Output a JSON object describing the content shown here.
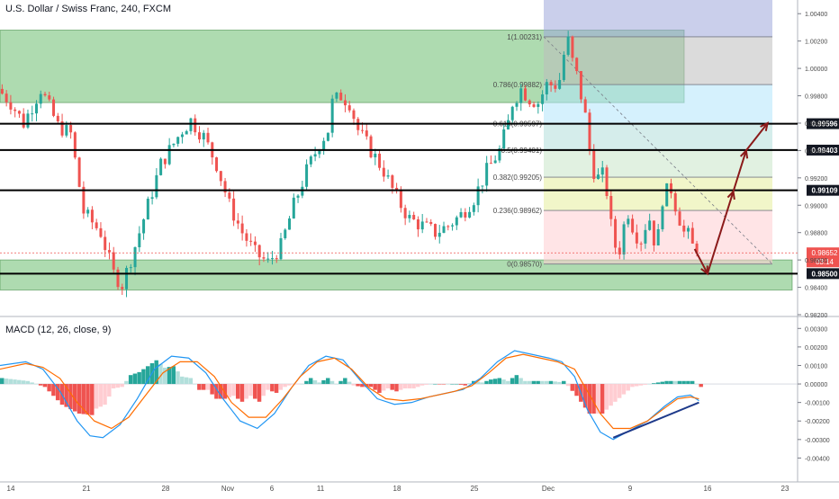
{
  "header": {
    "symbol_title": "U.S. Dollar / Swiss Franc, 240, FXCM"
  },
  "macd_title": "MACD (12, 26, close, 9)",
  "colors": {
    "up": "#26a69a",
    "down": "#ef5350",
    "zone_green": "#4caf50",
    "level_line": "#000000",
    "arrow": "#8b1a1a"
  },
  "chart_data": [
    {
      "type": "candlestick",
      "ylim": [
        0.982,
        1.005
      ],
      "y_ticks": [
        "1.00400",
        "1.00200",
        "1.00000",
        "0.99800",
        "0.99600",
        "0.99400",
        "0.99200",
        "0.99000",
        "0.98800",
        "0.98600",
        "0.98400",
        "0.98200"
      ],
      "x_ticks": [
        "14",
        "21",
        "28",
        "Nov",
        "6",
        "11",
        "18",
        "25",
        "Dec",
        "9",
        "16",
        "23"
      ],
      "price_path": [
        [
          0,
          0.9985
        ],
        [
          3,
          0.9975
        ],
        [
          6,
          0.996
        ],
        [
          10,
          0.9985
        ],
        [
          14,
          0.9958
        ],
        [
          17,
          0.9952
        ],
        [
          20,
          0.9895
        ],
        [
          24,
          0.988
        ],
        [
          27,
          0.985
        ],
        [
          29,
          0.9842
        ],
        [
          32,
          0.987
        ],
        [
          35,
          0.99
        ],
        [
          38,
          0.993
        ],
        [
          41,
          0.9945
        ],
        [
          43,
          0.9955
        ],
        [
          45,
          0.9962
        ],
        [
          48,
          0.995
        ],
        [
          51,
          0.993
        ],
        [
          54,
          0.99
        ],
        [
          57,
          0.988
        ],
        [
          60,
          0.9865
        ],
        [
          63,
          0.9858
        ],
        [
          66,
          0.987
        ],
        [
          69,
          0.99
        ],
        [
          72,
          0.9925
        ],
        [
          75,
          0.9945
        ],
        [
          77,
          0.9955
        ],
        [
          78,
          0.9975
        ],
        [
          80,
          0.998
        ],
        [
          82,
          0.9975
        ],
        [
          84,
          0.9955
        ],
        [
          87,
          0.994
        ],
        [
          90,
          0.9925
        ],
        [
          93,
          0.9905
        ],
        [
          96,
          0.989
        ],
        [
          99,
          0.9885
        ],
        [
          102,
          0.988
        ],
        [
          105,
          0.9885
        ],
        [
          108,
          0.9893
        ],
        [
          111,
          0.9905
        ],
        [
          114,
          0.9925
        ],
        [
          117,
          0.994
        ],
        [
          119,
          0.996
        ],
        [
          120,
          0.9975
        ],
        [
          122,
          0.9985
        ],
        [
          124,
          0.9978
        ],
        [
          126,
          0.9975
        ],
        [
          128,
          0.9988
        ],
        [
          130,
          0.9988
        ],
        [
          131,
          0.9992
        ],
        [
          132,
          1.001
        ],
        [
          133,
          1.002
        ],
        [
          134,
          1.0005
        ],
        [
          135,
          0.9995
        ],
        [
          136,
          0.998
        ],
        [
          137,
          0.9965
        ],
        [
          138,
          0.994
        ],
        [
          139,
          0.9925
        ],
        [
          140,
          0.992
        ],
        [
          141,
          0.9922
        ],
        [
          142,
          0.991
        ],
        [
          143,
          0.9885
        ],
        [
          144,
          0.987
        ],
        [
          145,
          0.9868
        ],
        [
          146,
          0.9885
        ],
        [
          147,
          0.9895
        ],
        [
          148,
          0.9885
        ],
        [
          149,
          0.9878
        ],
        [
          150,
          0.9875
        ],
        [
          151,
          0.9885
        ],
        [
          152,
          0.989
        ],
        [
          153,
          0.9875
        ],
        [
          154,
          0.9878
        ],
        [
          155,
          0.9905
        ],
        [
          156,
          0.991
        ],
        [
          157,
          0.9912
        ],
        [
          158,
          0.99
        ],
        [
          159,
          0.989
        ],
        [
          160,
          0.988
        ],
        [
          161,
          0.9878
        ],
        [
          162,
          0.987
        ]
      ],
      "annotations": {
        "horizontal_levels": [
          {
            "price": 0.99596,
            "label": "0.99596"
          },
          {
            "price": 0.99403,
            "label": "0.99403"
          },
          {
            "price": 0.99109,
            "label": "0.99109"
          },
          {
            "price": 0.985,
            "label": "0.98500"
          }
        ],
        "current_price": {
          "label": "0.98652",
          "price": 0.98652,
          "countdown": "03:14"
        },
        "fib_retracement": [
          {
            "ratio": "1",
            "price": 1.00231,
            "label": "1(1.00231)"
          },
          {
            "ratio": "0.786",
            "price": 0.99882,
            "label": "0.786(0.99882)"
          },
          {
            "ratio": "0.618",
            "price": 0.99597,
            "label": "0.618(0.99597)"
          },
          {
            "ratio": "0.5",
            "price": 0.99401,
            "label": "0.5(0.99401)"
          },
          {
            "ratio": "0.382",
            "price": 0.99205,
            "label": "0.382(0.99205)"
          },
          {
            "ratio": "0.236",
            "price": 0.98962,
            "label": "0.236(0.98962)"
          },
          {
            "ratio": "0",
            "price": 0.9857,
            "label": "0(0.98570)"
          }
        ],
        "zones": [
          {
            "name": "resistance",
            "from": 0.9975,
            "to": 1.0028
          },
          {
            "name": "support",
            "from": 0.9838,
            "to": 0.986
          }
        ],
        "projected_path": [
          [
            162,
            0.9868
          ],
          [
            165,
            0.985
          ],
          [
            171,
            0.991
          ],
          [
            174,
            0.994
          ],
          [
            179,
            0.996
          ]
        ]
      }
    },
    {
      "type": "macd",
      "title": "MACD (12, 26, close, 9)",
      "ylim": [
        -0.005,
        0.0035
      ],
      "y_ticks": [
        "0.00300",
        "0.00200",
        "0.00100",
        "0.00000",
        "-0.00100",
        "-0.00200",
        "-0.00300",
        "-0.00400"
      ],
      "macd_line": [
        [
          0,
          0.001
        ],
        [
          6,
          0.0012
        ],
        [
          10,
          0.0008
        ],
        [
          14,
          -0.0004
        ],
        [
          18,
          -0.002
        ],
        [
          21,
          -0.0028
        ],
        [
          24,
          -0.0029
        ],
        [
          28,
          -0.0022
        ],
        [
          32,
          -0.0008
        ],
        [
          36,
          0.0008
        ],
        [
          40,
          0.0015
        ],
        [
          44,
          0.0014
        ],
        [
          48,
          0.0006
        ],
        [
          52,
          -0.0008
        ],
        [
          56,
          -0.002
        ],
        [
          60,
          -0.0024
        ],
        [
          64,
          -0.0016
        ],
        [
          68,
          -0.0002
        ],
        [
          72,
          0.001
        ],
        [
          76,
          0.0015
        ],
        [
          80,
          0.0013
        ],
        [
          84,
          0.0002
        ],
        [
          88,
          -0.0008
        ],
        [
          92,
          -0.0011
        ],
        [
          96,
          -0.001
        ],
        [
          100,
          -0.0007
        ],
        [
          104,
          -0.0005
        ],
        [
          108,
          -0.0003
        ],
        [
          112,
          0.0003
        ],
        [
          116,
          0.0012
        ],
        [
          120,
          0.0018
        ],
        [
          124,
          0.0016
        ],
        [
          128,
          0.0014
        ],
        [
          131,
          0.0012
        ],
        [
          134,
          0.0004
        ],
        [
          137,
          -0.0014
        ],
        [
          140,
          -0.0026
        ],
        [
          143,
          -0.003
        ],
        [
          147,
          -0.0025
        ],
        [
          151,
          -0.002
        ],
        [
          155,
          -0.0012
        ],
        [
          158,
          -0.0007
        ],
        [
          161,
          -0.0006
        ],
        [
          163,
          -0.0009
        ]
      ],
      "signal_line": [
        [
          0,
          0.0008
        ],
        [
          6,
          0.0011
        ],
        [
          10,
          0.0009
        ],
        [
          14,
          0.0003
        ],
        [
          18,
          -0.001
        ],
        [
          22,
          -0.002
        ],
        [
          26,
          -0.0024
        ],
        [
          30,
          -0.0018
        ],
        [
          34,
          -0.0006
        ],
        [
          38,
          0.0006
        ],
        [
          42,
          0.0012
        ],
        [
          46,
          0.0012
        ],
        [
          50,
          0.0004
        ],
        [
          54,
          -0.001
        ],
        [
          58,
          -0.0018
        ],
        [
          62,
          -0.0018
        ],
        [
          66,
          -0.0008
        ],
        [
          70,
          0.0004
        ],
        [
          74,
          0.0012
        ],
        [
          78,
          0.0014
        ],
        [
          82,
          0.0008
        ],
        [
          86,
          -0.0002
        ],
        [
          90,
          -0.0008
        ],
        [
          94,
          -0.0009
        ],
        [
          98,
          -0.0008
        ],
        [
          102,
          -0.0006
        ],
        [
          106,
          -0.0004
        ],
        [
          110,
          -0.0001
        ],
        [
          114,
          0.0006
        ],
        [
          118,
          0.0014
        ],
        [
          122,
          0.0016
        ],
        [
          126,
          0.0014
        ],
        [
          130,
          0.0012
        ],
        [
          134,
          0.0008
        ],
        [
          137,
          -0.0004
        ],
        [
          140,
          -0.0016
        ],
        [
          143,
          -0.0024
        ],
        [
          147,
          -0.0024
        ],
        [
          151,
          -0.002
        ],
        [
          155,
          -0.0013
        ],
        [
          158,
          -0.0008
        ],
        [
          161,
          -0.0007
        ],
        [
          163,
          -0.0008
        ]
      ],
      "trendline": [
        [
          143,
          -0.0029
        ],
        [
          163,
          -0.001
        ]
      ]
    }
  ]
}
